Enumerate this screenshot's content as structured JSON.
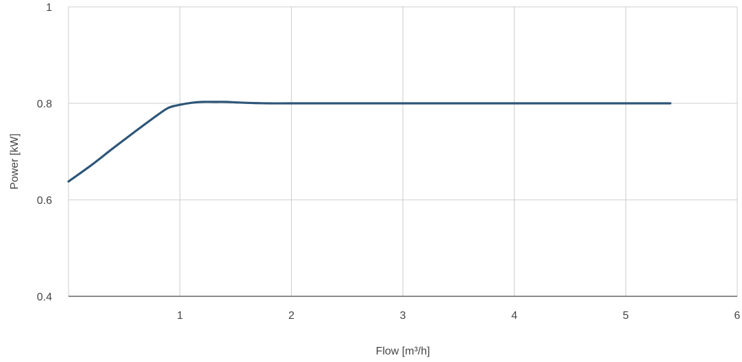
{
  "chart_data": {
    "type": "line",
    "title": "",
    "xlabel": "Flow [m³/h]",
    "ylabel": "Power [kW]",
    "xlim": [
      0,
      6
    ],
    "ylim": [
      0.4,
      1
    ],
    "x_ticks": [
      {
        "value": 1,
        "label": "1"
      },
      {
        "value": 2,
        "label": "2"
      },
      {
        "value": 3,
        "label": "3"
      },
      {
        "value": 4,
        "label": "4"
      },
      {
        "value": 5,
        "label": "5"
      },
      {
        "value": 6,
        "label": "6"
      }
    ],
    "y_ticks": [
      {
        "value": 0.4,
        "label": "0.4"
      },
      {
        "value": 0.6,
        "label": "0.6"
      },
      {
        "value": 0.8,
        "label": "0.8"
      },
      {
        "value": 1,
        "label": "1"
      }
    ],
    "grid": true,
    "legend": "none",
    "line_color": "#2d5578",
    "grid_color": "#cccccc",
    "axis_color": "#444444",
    "series": [
      {
        "x": [
          0,
          0.2,
          0.4,
          0.6,
          0.8,
          0.9,
          1.0,
          1.1,
          1.2,
          1.3,
          1.4,
          1.5,
          1.6,
          1.8,
          2.0,
          3.0,
          4.0,
          5.0,
          5.4
        ],
        "y": [
          0.638,
          0.671,
          0.707,
          0.742,
          0.776,
          0.791,
          0.797,
          0.801,
          0.803,
          0.803,
          0.803,
          0.802,
          0.801,
          0.8,
          0.8,
          0.8,
          0.8,
          0.8,
          0.8
        ]
      }
    ]
  }
}
